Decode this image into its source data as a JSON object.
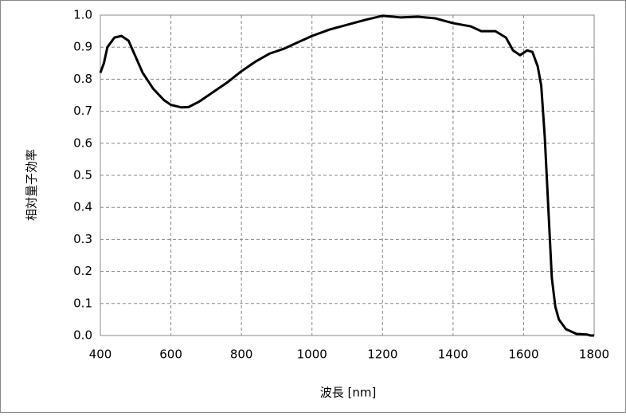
{
  "chart_data": {
    "type": "line",
    "xlabel": "波長 [nm]",
    "ylabel": "相対量子効率",
    "x": [
      400,
      410,
      420,
      440,
      460,
      480,
      500,
      520,
      550,
      580,
      600,
      630,
      650,
      680,
      720,
      760,
      800,
      840,
      880,
      920,
      960,
      1000,
      1050,
      1100,
      1150,
      1200,
      1250,
      1300,
      1350,
      1400,
      1450,
      1480,
      1520,
      1550,
      1570,
      1590,
      1610,
      1625,
      1640,
      1650,
      1660,
      1670,
      1680,
      1690,
      1700,
      1720,
      1750,
      1780,
      1790,
      1800
    ],
    "series": [
      {
        "color": "#000000",
        "values": [
          0.82,
          0.85,
          0.9,
          0.93,
          0.935,
          0.92,
          0.87,
          0.82,
          0.77,
          0.735,
          0.72,
          0.712,
          0.713,
          0.73,
          0.76,
          0.79,
          0.825,
          0.855,
          0.88,
          0.895,
          0.915,
          0.935,
          0.955,
          0.97,
          0.985,
          0.998,
          0.993,
          0.995,
          0.99,
          0.975,
          0.965,
          0.95,
          0.95,
          0.93,
          0.89,
          0.875,
          0.89,
          0.885,
          0.84,
          0.78,
          0.62,
          0.4,
          0.18,
          0.09,
          0.05,
          0.02,
          0.005,
          0.003,
          0.0,
          0.0
        ]
      }
    ],
    "xlim": [
      400,
      1800
    ],
    "xticks": [
      400,
      600,
      800,
      1000,
      1200,
      1400,
      1600,
      1800
    ],
    "ylim": [
      0,
      1
    ],
    "yticks": [
      {
        "value": 0,
        "label": "0.0"
      },
      0.1,
      0.2,
      0.3,
      0.4,
      0.5,
      0.6,
      0.7,
      0.8,
      0.9,
      {
        "value": 1,
        "label": "1.0"
      }
    ],
    "grid": true
  }
}
